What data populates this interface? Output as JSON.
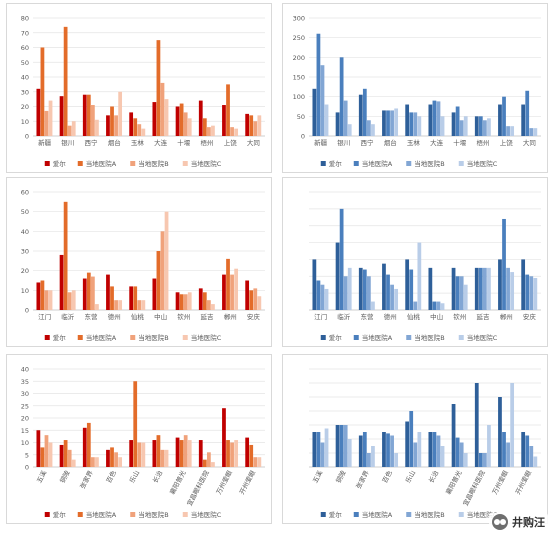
{
  "colors": {
    "warm": [
      "#c00000",
      "#e36c2a",
      "#f0a27b",
      "#f7c7b0"
    ],
    "cool": [
      "#2e5f99",
      "#4a7fbd",
      "#82a6d4",
      "#b9cde8"
    ],
    "axis": "#bfbfbf",
    "grid": "#e4e4e4",
    "tick_text": "#595959"
  },
  "series_names": [
    "爱尔",
    "当地医院A",
    "当地医院B",
    "当地医院C"
  ],
  "watermark": "井购汪",
  "chart_data": [
    {
      "id": "p1",
      "type": "bar",
      "palette": "warm",
      "ylim": [
        0,
        80
      ],
      "yticks": [
        0,
        10,
        20,
        30,
        40,
        50,
        60,
        70,
        80
      ],
      "show_yticks": true,
      "categories": [
        "新疆",
        "银川",
        "西宁",
        "烟台",
        "玉林",
        "大连",
        "十堰",
        "梧州",
        "上饶",
        "大同"
      ],
      "series": [
        {
          "name": "爱尔",
          "values": [
            32,
            27,
            28,
            14,
            16,
            23,
            20,
            24,
            21,
            15
          ]
        },
        {
          "name": "当地医院A",
          "values": [
            60,
            74,
            28,
            20,
            12,
            65,
            22,
            12,
            35,
            14
          ]
        },
        {
          "name": "当地医院B",
          "values": [
            17,
            7,
            21,
            14,
            8,
            36,
            16,
            6,
            6,
            10
          ]
        },
        {
          "name": "当地医院C",
          "values": [
            24,
            10,
            11,
            30,
            5,
            25,
            12,
            7,
            5,
            14
          ]
        }
      ]
    },
    {
      "id": "p2",
      "type": "bar",
      "palette": "cool",
      "ylim": [
        0,
        300
      ],
      "yticks": [
        0,
        50,
        100,
        150,
        200,
        250,
        300
      ],
      "show_yticks": true,
      "categories": [
        "新疆",
        "银川",
        "西宁",
        "烟台",
        "玉林",
        "大连",
        "十堰",
        "梧州",
        "上饶",
        "大同"
      ],
      "series": [
        {
          "name": "爱尔",
          "values": [
            120,
            60,
            105,
            65,
            80,
            80,
            60,
            50,
            80,
            80
          ]
        },
        {
          "name": "当地医院A",
          "values": [
            260,
            200,
            120,
            65,
            60,
            90,
            75,
            50,
            100,
            115
          ]
        },
        {
          "name": "当地医院B",
          "values": [
            180,
            90,
            40,
            65,
            60,
            88,
            40,
            40,
            25,
            20
          ]
        },
        {
          "name": "当地医院C",
          "values": [
            80,
            30,
            30,
            70,
            50,
            50,
            50,
            45,
            25,
            20
          ]
        }
      ]
    },
    {
      "id": "p3",
      "type": "bar",
      "palette": "warm",
      "ylim": [
        0,
        60
      ],
      "yticks": [
        0,
        10,
        20,
        30,
        40,
        50,
        60
      ],
      "show_yticks": true,
      "categories": [
        "江门",
        "临沂",
        "东营",
        "德州",
        "仙桃",
        "中山",
        "钦州",
        "延吉",
        "郴州",
        "安庆"
      ],
      "series": [
        {
          "name": "爱尔",
          "values": [
            14,
            28,
            16,
            18,
            12,
            16,
            9,
            11,
            18,
            15
          ]
        },
        {
          "name": "当地医院A",
          "values": [
            15,
            55,
            19,
            12,
            12,
            30,
            8,
            9,
            26,
            10
          ]
        },
        {
          "name": "当地医院B",
          "values": [
            10,
            9,
            17,
            5,
            5,
            40,
            8,
            5,
            18,
            11
          ]
        },
        {
          "name": "当地医院C",
          "values": [
            10,
            10,
            3,
            5,
            5,
            50,
            9,
            3,
            21,
            7
          ]
        }
      ]
    },
    {
      "id": "p4",
      "type": "bar",
      "palette": "cool",
      "ylim": [
        0,
        140
      ],
      "yticks": [
        0,
        20,
        40,
        60,
        80,
        100,
        120,
        140
      ],
      "show_yticks": false,
      "categories": [
        "江门",
        "临沂",
        "东营",
        "德州",
        "仙桃",
        "中山",
        "钦州",
        "延吉",
        "郴州",
        "安庆"
      ],
      "series": [
        {
          "name": "爱尔",
          "values": [
            60,
            80,
            50,
            55,
            60,
            50,
            50,
            50,
            60,
            60
          ]
        },
        {
          "name": "当地医院A",
          "values": [
            35,
            120,
            48,
            42,
            48,
            10,
            40,
            50,
            108,
            42
          ]
        },
        {
          "name": "当地医院B",
          "values": [
            30,
            40,
            40,
            30,
            10,
            10,
            40,
            50,
            50,
            40
          ]
        },
        {
          "name": "当地医院C",
          "values": [
            25,
            50,
            10,
            25,
            80,
            8,
            30,
            50,
            45,
            38
          ]
        }
      ]
    },
    {
      "id": "p5",
      "type": "bar",
      "palette": "warm",
      "ylim": [
        0,
        40
      ],
      "yticks": [
        0,
        5,
        10,
        15,
        20,
        25,
        30,
        35,
        40
      ],
      "show_yticks": true,
      "categories": [
        "五溪",
        "铜陵",
        "张家界",
        "百色",
        "乐山",
        "长治",
        "襄阳普光",
        "宜昌眼科医院",
        "万州爱眼",
        "开州爱眼"
      ],
      "series": [
        {
          "name": "爱尔",
          "values": [
            15,
            9,
            16,
            7,
            11,
            11,
            12,
            11,
            24,
            12
          ]
        },
        {
          "name": "当地医院A",
          "values": [
            8,
            11,
            18,
            8,
            35,
            13,
            11,
            3,
            11,
            9
          ]
        },
        {
          "name": "当地医院B",
          "values": [
            13,
            7,
            4,
            6,
            10,
            7,
            13,
            6,
            10,
            4
          ]
        },
        {
          "name": "当地医院C",
          "values": [
            10,
            3,
            4,
            4,
            10,
            7,
            11,
            2,
            11,
            4
          ]
        }
      ]
    },
    {
      "id": "p6",
      "type": "bar",
      "palette": "cool",
      "ylim": [
        0,
        140
      ],
      "yticks": [
        0,
        20,
        40,
        60,
        80,
        100,
        120,
        140
      ],
      "show_yticks": false,
      "categories": [
        "五溪",
        "铜陵",
        "张家界",
        "百色",
        "乐山",
        "长治",
        "襄阳普光",
        "宜昌眼科医院",
        "万州爱眼",
        "开州爱眼"
      ],
      "series": [
        {
          "name": "爱尔",
          "values": [
            50,
            60,
            45,
            50,
            65,
            50,
            90,
            120,
            100,
            50
          ]
        },
        {
          "name": "当地医院A",
          "values": [
            50,
            60,
            50,
            48,
            80,
            50,
            42,
            20,
            50,
            45
          ]
        },
        {
          "name": "当地医院B",
          "values": [
            35,
            60,
            20,
            45,
            35,
            45,
            35,
            20,
            35,
            30
          ]
        },
        {
          "name": "当地医院C",
          "values": [
            55,
            40,
            30,
            20,
            50,
            30,
            20,
            60,
            120,
            15
          ]
        }
      ]
    }
  ]
}
